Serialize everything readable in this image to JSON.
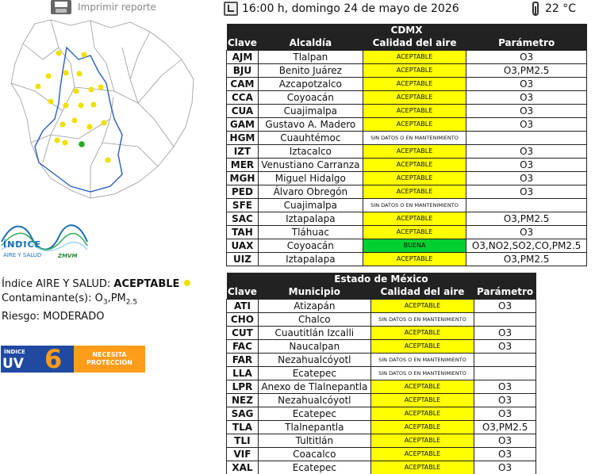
{
  "toolbar": {
    "print_label": "Imprimir reporte"
  },
  "header": {
    "datetime": "16:00 h, domingo 24 de mayo de 2026",
    "temperature": "22 °C"
  },
  "logo": {
    "title": "ÍNDICE",
    "subtitle": "AIRE Y SALUD",
    "zmvm": "ZMVM"
  },
  "index": {
    "label": "Índice AIRE Y SALUD:",
    "value": "ACEPTABLE",
    "contaminant_label": "Contaminante(s):",
    "contaminant_o": "O",
    "contaminant_o_sub": "3",
    "contaminant_pm": ",PM",
    "contaminant_pm_sub": "2.5",
    "risk": "Riesgo: MODERADO",
    "dot_color": "#f0e000"
  },
  "uv": {
    "label_top": "ÍNDICE",
    "label_uv": "UV",
    "value": "6",
    "message": "NECESITA PROTECCIÓN",
    "color_left": "#1f4aa0",
    "color_right": "#ff9c1a"
  },
  "cdmx": {
    "title": "CDMX",
    "headers": [
      "Clave",
      "Alcaldía",
      "Calidad del aire",
      "Parámetro"
    ],
    "rows": [
      {
        "clave": "AJM",
        "name": "Tlalpan",
        "calidad": "ACEPTABLE",
        "param": "O3"
      },
      {
        "clave": "BJU",
        "name": "Benito Juárez",
        "calidad": "ACEPTABLE",
        "param": "O3,PM2.5"
      },
      {
        "clave": "CAM",
        "name": "Azcapotzalco",
        "calidad": "ACEPTABLE",
        "param": "O3"
      },
      {
        "clave": "CCA",
        "name": "Coyoacán",
        "calidad": "ACEPTABLE",
        "param": "O3"
      },
      {
        "clave": "CUA",
        "name": "Cuajimalpa",
        "calidad": "ACEPTABLE",
        "param": "O3"
      },
      {
        "clave": "GAM",
        "name": "Gustavo A. Madero",
        "calidad": "ACEPTABLE",
        "param": "O3"
      },
      {
        "clave": "HGM",
        "name": "Cuauhtémoc",
        "calidad": "SIN DATOS O EN MANTENIMIENTO",
        "param": ""
      },
      {
        "clave": "IZT",
        "name": "Iztacalco",
        "calidad": "ACEPTABLE",
        "param": "O3"
      },
      {
        "clave": "MER",
        "name": "Venustiano Carranza",
        "calidad": "ACEPTABLE",
        "param": "O3"
      },
      {
        "clave": "MGH",
        "name": "Miguel Hidalgo",
        "calidad": "ACEPTABLE",
        "param": "O3"
      },
      {
        "clave": "PED",
        "name": "Álvaro Obregón",
        "calidad": "ACEPTABLE",
        "param": "O3"
      },
      {
        "clave": "SFE",
        "name": "Cuajimalpa",
        "calidad": "SIN DATOS O EN MANTENIMIENTO",
        "param": ""
      },
      {
        "clave": "SAC",
        "name": "Iztapalapa",
        "calidad": "ACEPTABLE",
        "param": "O3,PM2.5"
      },
      {
        "clave": "TAH",
        "name": "Tláhuac",
        "calidad": "ACEPTABLE",
        "param": "O3"
      },
      {
        "clave": "UAX",
        "name": "Coyoacán",
        "calidad": "BUENA",
        "param": "O3,NO2,SO2,CO,PM2.5"
      },
      {
        "clave": "UIZ",
        "name": "Iztapalapa",
        "calidad": "ACEPTABLE",
        "param": "O3,PM2.5"
      }
    ]
  },
  "edomex": {
    "title": "Estado de México",
    "headers": [
      "Clave",
      "Municipio",
      "Calidad del aire",
      "Parámetro"
    ],
    "rows": [
      {
        "clave": "ATI",
        "name": "Atizapán",
        "calidad": "ACEPTABLE",
        "param": "O3"
      },
      {
        "clave": "CHO",
        "name": "Chalco",
        "calidad": "SIN DATOS O EN MANTENIMIENTO",
        "param": ""
      },
      {
        "clave": "CUT",
        "name": "Cuautitlán Izcalli",
        "calidad": "ACEPTABLE",
        "param": "O3"
      },
      {
        "clave": "FAC",
        "name": "Naucalpan",
        "calidad": "ACEPTABLE",
        "param": "O3"
      },
      {
        "clave": "FAR",
        "name": "Nezahualcóyotl",
        "calidad": "SIN DATOS O EN MANTENIMIENTO",
        "param": ""
      },
      {
        "clave": "LLA",
        "name": "Ecatepec",
        "calidad": "SIN DATOS O EN MANTENIMIENTO",
        "param": ""
      },
      {
        "clave": "LPR",
        "name": "Anexo de Tlalnepantla",
        "calidad": "ACEPTABLE",
        "param": "O3"
      },
      {
        "clave": "NEZ",
        "name": "Nezahualcóyotl",
        "calidad": "ACEPTABLE",
        "param": "O3"
      },
      {
        "clave": "SAG",
        "name": "Ecatepec",
        "calidad": "ACEPTABLE",
        "param": "O3"
      },
      {
        "clave": "TLA",
        "name": "Tlalnepantla",
        "calidad": "ACEPTABLE",
        "param": "O3,PM2.5"
      },
      {
        "clave": "TLI",
        "name": "Tultitlán",
        "calidad": "ACEPTABLE",
        "param": "O3"
      },
      {
        "clave": "VIF",
        "name": "Coacalco",
        "calidad": "ACEPTABLE",
        "param": "O3"
      },
      {
        "clave": "XAL",
        "name": "Ecatepec",
        "calidad": "ACEPTABLE",
        "param": "O3"
      }
    ]
  },
  "colors": {
    "aceptable": "#ffff00",
    "buena": "#00d030",
    "header_bg": "#222222",
    "station_dot": "#f0e000",
    "station_dot_good": "#22aa22"
  }
}
